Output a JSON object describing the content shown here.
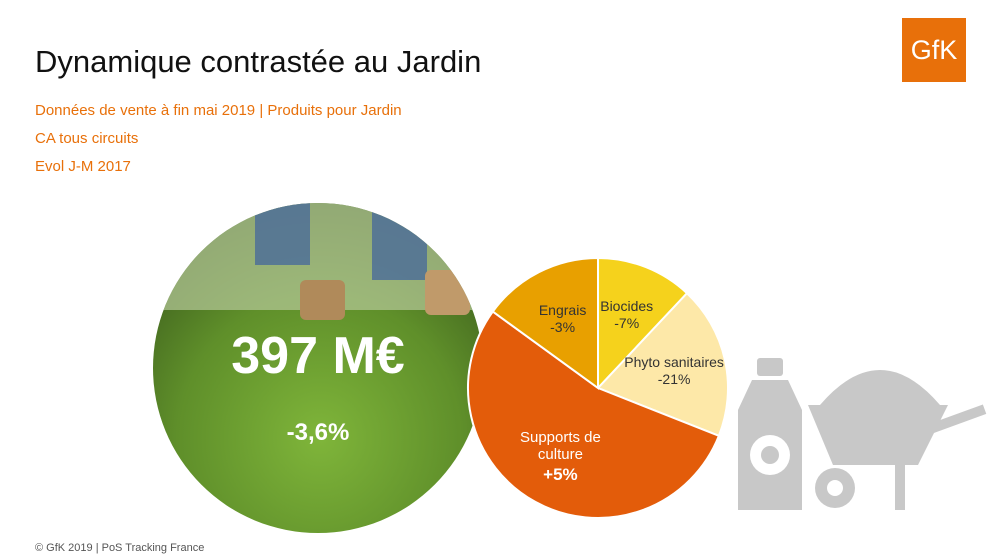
{
  "header": {
    "title": "Dynamique contrastée au Jardin",
    "lines": [
      "Données de vente à fin mai 2019 | Produits pour Jardin",
      "CA tous circuits",
      "Evol J-M 2017"
    ],
    "logo": "GfK"
  },
  "hero": {
    "value": "397 M€",
    "change": "-3,6%"
  },
  "chart_data": {
    "type": "pie",
    "categories": [
      "Biocides",
      "Phyto sanitaires",
      "Supports de culture",
      "Engrais"
    ],
    "values": [
      12,
      19,
      54,
      15
    ],
    "changes": [
      "-7%",
      "-21%",
      "+5%",
      "-3%"
    ],
    "colors": [
      "#f5d21c",
      "#fde8a8",
      "#e35c0a",
      "#e8a000"
    ]
  },
  "footer": "© GfK 2019 | PoS Tracking France"
}
